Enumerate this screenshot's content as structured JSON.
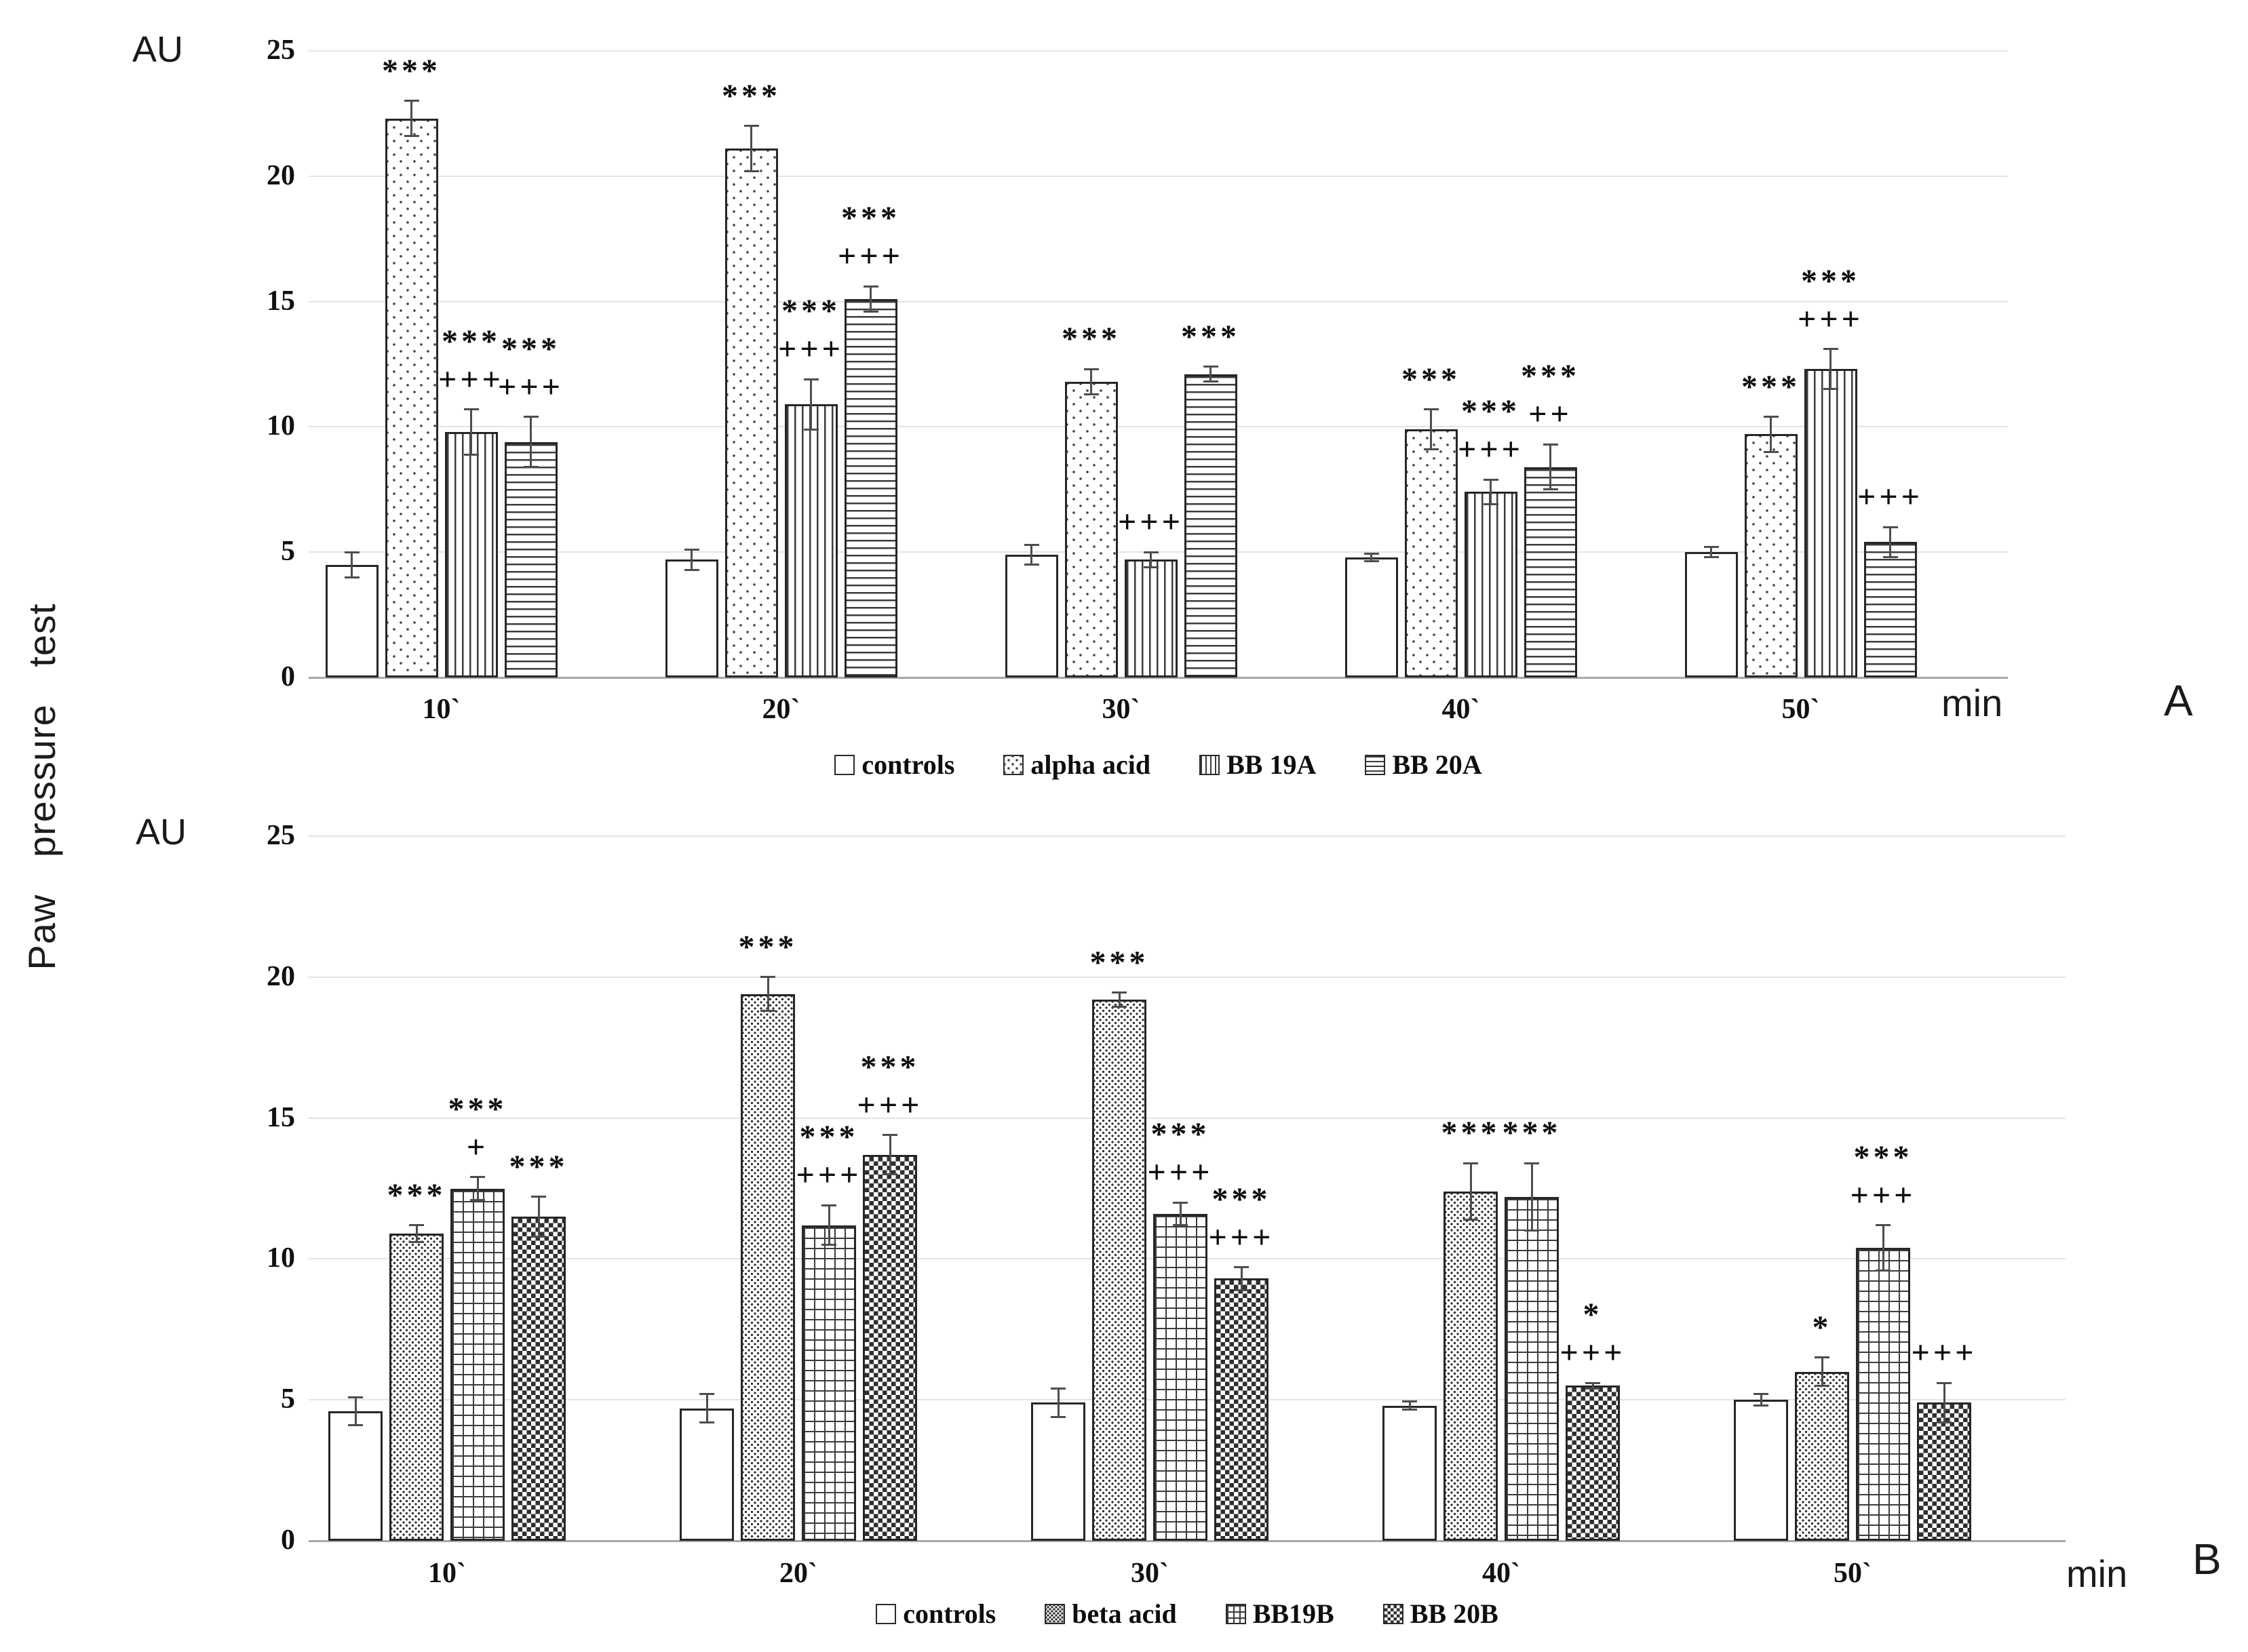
{
  "figure": {
    "ylabel": "Paw pressure test",
    "y_axis_unit": "AU",
    "x_axis_unit": "min",
    "panel_labels": [
      "A",
      "B"
    ],
    "colors": {
      "bar_border": "#262626",
      "gridline": "#e3e3e3",
      "text": "#111111"
    }
  },
  "chart_data": [
    {
      "type": "bar",
      "panel": "A",
      "ylabel": "AU",
      "xlabel": "min",
      "ylim": [
        0,
        25
      ],
      "yticks": [
        0,
        5,
        10,
        15,
        20,
        25
      ],
      "grid": true,
      "legend_position": "bottom",
      "categories": [
        "10`",
        "20`",
        "30`",
        "40`",
        "50`"
      ],
      "series": [
        {
          "name": "controls",
          "pattern": "plain",
          "values": [
            4.5,
            4.7,
            4.9,
            4.8,
            5.0
          ],
          "errors": [
            0.5,
            0.4,
            0.4,
            0.15,
            0.2
          ],
          "annotations": [
            [],
            [],
            [],
            [],
            []
          ]
        },
        {
          "name": "alpha acid",
          "pattern": "dots",
          "values": [
            22.3,
            21.1,
            11.8,
            9.9,
            9.7
          ],
          "errors": [
            0.7,
            0.9,
            0.5,
            0.8,
            0.7
          ],
          "annotations": [
            [
              "***"
            ],
            [
              "***"
            ],
            [
              "***"
            ],
            [
              "***"
            ],
            [
              "***"
            ]
          ]
        },
        {
          "name": "BB 19A",
          "pattern": "vlines",
          "values": [
            9.8,
            10.9,
            4.7,
            7.4,
            12.3
          ],
          "errors": [
            0.9,
            1.0,
            0.3,
            0.5,
            0.8
          ],
          "annotations": [
            [
              "***",
              "+++"
            ],
            [
              "***",
              "+++"
            ],
            [
              "+++"
            ],
            [
              "***",
              "+++"
            ],
            [
              "***",
              "+++"
            ]
          ]
        },
        {
          "name": "BB 20A",
          "pattern": "hlines",
          "values": [
            9.4,
            15.1,
            12.1,
            8.4,
            5.4
          ],
          "errors": [
            1.0,
            0.5,
            0.3,
            0.9,
            0.6
          ],
          "annotations": [
            [
              "***",
              "+++"
            ],
            [
              "***",
              "+++"
            ],
            [
              "***"
            ],
            [
              "***",
              "++"
            ],
            [
              "+++"
            ]
          ]
        }
      ]
    },
    {
      "type": "bar",
      "panel": "B",
      "ylabel": "AU",
      "xlabel": "min",
      "ylim": [
        0,
        25
      ],
      "yticks": [
        0,
        5,
        10,
        15,
        20,
        25
      ],
      "grid": true,
      "legend_position": "bottom",
      "categories": [
        "10`",
        "20`",
        "30`",
        "40`",
        "50`"
      ],
      "series": [
        {
          "name": "controls",
          "pattern": "plain",
          "values": [
            4.6,
            4.7,
            4.9,
            4.8,
            5.0
          ],
          "errors": [
            0.5,
            0.5,
            0.5,
            0.15,
            0.2
          ],
          "annotations": [
            [],
            [],
            [],
            [],
            []
          ]
        },
        {
          "name": "beta acid",
          "pattern": "speckle",
          "values": [
            10.9,
            19.4,
            19.2,
            12.4,
            6.0
          ],
          "errors": [
            0.3,
            0.6,
            0.25,
            1.0,
            0.5
          ],
          "annotations": [
            [
              "***"
            ],
            [
              "***"
            ],
            [
              "***"
            ],
            [
              "***"
            ],
            [
              "*"
            ]
          ]
        },
        {
          "name": "BB19B",
          "pattern": "grid",
          "values": [
            12.5,
            11.2,
            11.6,
            12.2,
            10.4
          ],
          "errors": [
            0.4,
            0.7,
            0.4,
            1.2,
            0.8
          ],
          "annotations": [
            [
              "***",
              "+"
            ],
            [
              "***",
              "+++"
            ],
            [
              "***",
              "+++"
            ],
            [
              "***"
            ],
            [
              "***",
              "+++"
            ]
          ]
        },
        {
          "name": "BB 20B",
          "pattern": "checker",
          "values": [
            11.5,
            13.7,
            9.3,
            5.5,
            4.9
          ],
          "errors": [
            0.7,
            0.7,
            0.4,
            0.1,
            0.7
          ],
          "annotations": [
            [
              "***"
            ],
            [
              "***",
              "+++"
            ],
            [
              "***",
              "+++"
            ],
            [
              "*",
              "+++"
            ],
            [
              "+++"
            ]
          ]
        }
      ]
    }
  ]
}
